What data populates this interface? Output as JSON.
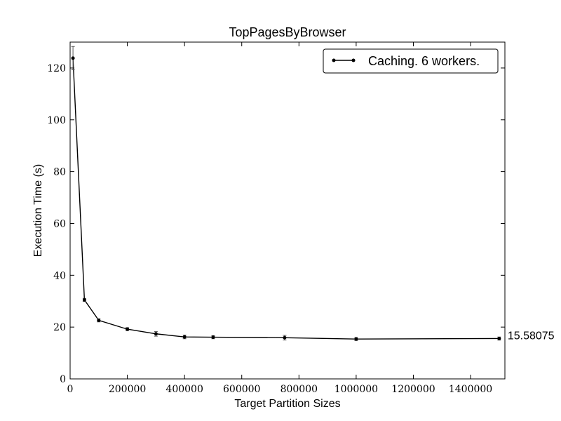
{
  "chart_data": {
    "type": "line",
    "title": "TopPagesByBrowser",
    "xlabel": "Target Partition Sizes",
    "ylabel": "Execution Time (s)",
    "xlim": [
      0,
      1520000
    ],
    "ylim": [
      0,
      130
    ],
    "x_ticks": [
      0,
      200000,
      400000,
      600000,
      800000,
      1000000,
      1200000,
      1400000
    ],
    "x_tick_labels": [
      "0",
      "200000",
      "400000",
      "600000",
      "800000",
      "1000000",
      "1200000",
      "1400000"
    ],
    "y_ticks": [
      0,
      20,
      40,
      60,
      80,
      100,
      120
    ],
    "y_tick_labels": [
      "0",
      "20",
      "40",
      "60",
      "80",
      "100",
      "120"
    ],
    "grid": false,
    "legend": {
      "placement": "top-right"
    },
    "series": [
      {
        "name": "Caching. 6 workers.",
        "color": "#000000",
        "x": [
          10000,
          50000,
          100000,
          200000,
          300000,
          400000,
          500000,
          750000,
          1000000,
          1500000
        ],
        "y": [
          123.8,
          30.5,
          22.6,
          19.2,
          17.4,
          16.2,
          16.1,
          15.9,
          15.4,
          15.58075
        ],
        "err": [
          4.5,
          0.6,
          0.6,
          0.6,
          0.9,
          0.7,
          0.6,
          0.9,
          0.6,
          0.6
        ]
      }
    ],
    "annotations": [
      {
        "text": "15.58075",
        "x": 1500000,
        "y": 15.58075
      }
    ]
  }
}
